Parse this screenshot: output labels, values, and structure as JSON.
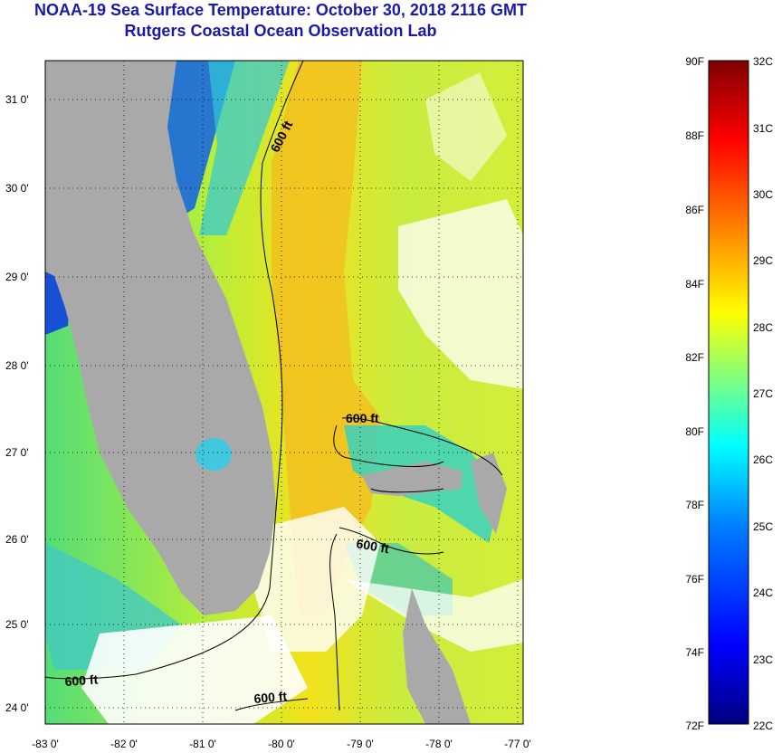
{
  "title": "NOAA-19 Sea Surface Temperature:  October 30, 2018 2116 GMT",
  "subtitle": "Rutgers Coastal Ocean Observation Lab",
  "map": {
    "lat_ticks": [
      "31 0'",
      "30 0'",
      "29 0'",
      "28 0'",
      "27 0'",
      "26 0'",
      "25 0'",
      "24 0'"
    ],
    "lon_ticks": [
      "-83 0'",
      "-82 0'",
      "-81 0'",
      "-80 0'",
      "-79 0'",
      "-78 0'",
      "-77 0'"
    ],
    "contour_labels": [
      "600 ft",
      "600 ft",
      "600 ft",
      "600 ft",
      "600 ft"
    ],
    "land_color": "#a9a9a9",
    "cloud_color": "#ffffff"
  },
  "colorbar": {
    "fahrenheit": [
      "90F",
      "88F",
      "86F",
      "84F",
      "82F",
      "80F",
      "78F",
      "76F",
      "74F",
      "72F"
    ],
    "celsius": [
      "32C",
      "31C",
      "30C",
      "29C",
      "28C",
      "27C",
      "26C",
      "25C",
      "24C",
      "23C",
      "22C"
    ],
    "colors": [
      "#00007f",
      "#0000ff",
      "#0080ff",
      "#00ffff",
      "#7fff7f",
      "#ffff00",
      "#ff8000",
      "#ff0000",
      "#7f0000"
    ]
  }
}
